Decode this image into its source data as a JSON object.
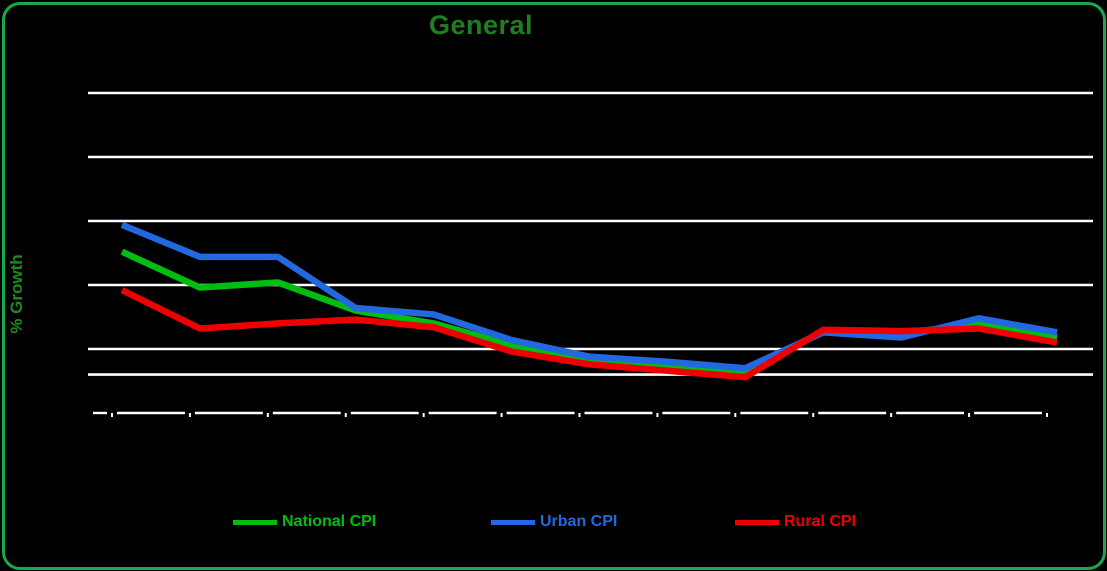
{
  "page": {
    "background_color": "#000000",
    "border_color": "#17a94e"
  },
  "chart": {
    "title": "General",
    "title_color": "#1f7f1f",
    "ylabel": "% Growth",
    "ylabel_color": "#1c8a1c"
  },
  "legend": {
    "position": "bottom",
    "entries": [
      {
        "label": "National CPI",
        "color": "#00bd11"
      },
      {
        "label": "Urban CPI",
        "color": "#2268e0"
      },
      {
        "label": "Rural CPI",
        "color": "#ee0000"
      }
    ]
  },
  "chart_data": {
    "type": "line",
    "title": "General",
    "xlabel": "",
    "ylabel": "% Growth",
    "x_axis": {
      "num_points": 13,
      "tick_labels_visible": false
    },
    "y_axis": {
      "min": 0,
      "max": 27,
      "gridline_values": [
        5,
        10,
        15,
        20,
        25
      ],
      "reference_line_value": 3,
      "tick_labels_visible": false,
      "grid": true
    },
    "series": [
      {
        "name": "National CPI",
        "color": "#00bd11",
        "values": [
          12.6,
          9.8,
          10.2,
          8.0,
          7.0,
          5.3,
          4.1,
          3.7,
          3.2,
          6.4,
          6.2,
          7.0,
          5.9
        ]
      },
      {
        "name": "Urban CPI",
        "color": "#2268e0",
        "values": [
          14.7,
          12.2,
          12.2,
          8.2,
          7.7,
          5.7,
          4.4,
          4.0,
          3.5,
          6.3,
          5.9,
          7.4,
          6.3
        ]
      },
      {
        "name": "Rural CPI",
        "color": "#ee0000",
        "values": [
          9.6,
          6.6,
          7.0,
          7.3,
          6.7,
          4.8,
          3.8,
          3.3,
          2.8,
          6.5,
          6.4,
          6.6,
          5.5
        ]
      }
    ],
    "legend_position": "bottom",
    "gridline_color": "#ffffff",
    "plot_background": "#000000"
  }
}
